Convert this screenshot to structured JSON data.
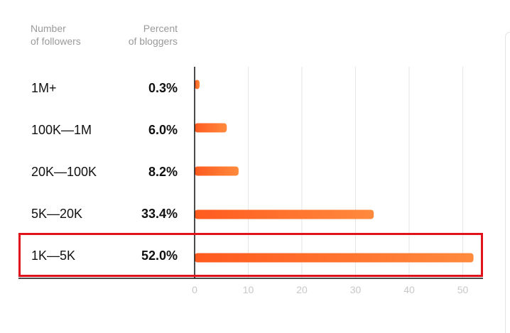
{
  "header": {
    "col1_line1": "Number",
    "col1_line2": "of followers",
    "col2_line1": "Percent",
    "col2_line2": "of bloggers"
  },
  "colors": {
    "bar_start": "#ff5a1f",
    "bar_end": "#ff8a3d",
    "highlight_border": "#e0131c",
    "grid": "#e6e6e6",
    "axis": "#111111",
    "tick_label": "#c8c8c8"
  },
  "highlighted_row": "1K—5K",
  "chart_data": {
    "type": "bar",
    "orientation": "horizontal",
    "categories": [
      "1M+",
      "100K—1M",
      "20K—100K",
      "5K—20K",
      "1K—5K"
    ],
    "value_labels": [
      "0.3%",
      "6.0%",
      "8.2%",
      "33.4%",
      "52.0%"
    ],
    "values": [
      0.3,
      6.0,
      8.2,
      33.4,
      52.0
    ],
    "xlim": [
      0,
      52
    ],
    "xticks": [
      "0",
      "10",
      "20",
      "30",
      "40",
      "50"
    ],
    "grid": true
  }
}
